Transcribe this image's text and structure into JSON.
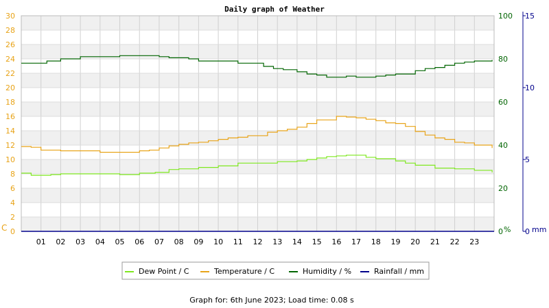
{
  "chart_data": {
    "type": "line",
    "title": "Daily graph of Weather",
    "footer": "Graph for: 6th June 2023; Load time: 0.08 s",
    "x_ticks": [
      "01",
      "02",
      "03",
      "04",
      "05",
      "06",
      "07",
      "08",
      "09",
      "10",
      "11",
      "12",
      "13",
      "14",
      "15",
      "16",
      "17",
      "18",
      "19",
      "20",
      "21",
      "22",
      "23"
    ],
    "x_range": [
      0,
      24
    ],
    "axes": {
      "left": {
        "unit": "C",
        "range": [
          0,
          30
        ],
        "ticks": [
          "0",
          "2",
          "4",
          "6",
          "8",
          "10",
          "12",
          "14",
          "16",
          "18",
          "20",
          "22",
          "24",
          "26",
          "28",
          "30"
        ],
        "color": "#e8a317"
      },
      "right1": {
        "unit": "%",
        "range": [
          0,
          100
        ],
        "ticks": [
          "0",
          "20",
          "40",
          "60",
          "80",
          "100"
        ],
        "color": "#006400"
      },
      "right2": {
        "unit": "mm",
        "range": [
          0,
          15
        ],
        "ticks": [
          "0",
          "5",
          "10",
          "15"
        ],
        "color": "#00008b"
      }
    },
    "grid": true,
    "legend_position": "bottom",
    "series": [
      {
        "name": "Dew Point / C",
        "axis": "left",
        "color": "#7ee81e",
        "x": [
          0,
          0.5,
          1,
          1.5,
          2,
          3,
          4,
          5,
          6,
          6.8,
          7.5,
          8,
          9,
          10,
          11,
          12,
          13,
          14,
          14.5,
          15,
          15.5,
          16,
          16.5,
          17,
          17.5,
          18,
          19,
          19.5,
          20,
          21,
          22,
          23,
          23.9
        ],
        "y": [
          8.1,
          7.8,
          7.8,
          7.9,
          8.0,
          8.0,
          8.0,
          7.9,
          8.1,
          8.2,
          8.6,
          8.7,
          8.9,
          9.1,
          9.5,
          9.5,
          9.7,
          9.8,
          10.0,
          10.2,
          10.4,
          10.5,
          10.6,
          10.6,
          10.3,
          10.1,
          9.8,
          9.5,
          9.2,
          8.8,
          8.7,
          8.5,
          8.2
        ]
      },
      {
        "name": "Temperature / C",
        "axis": "left",
        "color": "#e8a317",
        "x": [
          0,
          0.5,
          1,
          2,
          3,
          4,
          5,
          6,
          6.5,
          7,
          7.5,
          8,
          8.5,
          9,
          9.5,
          10,
          10.5,
          11,
          11.5,
          12,
          12.5,
          13,
          13.5,
          14,
          14.5,
          15,
          15.5,
          16,
          16.5,
          17,
          17.5,
          18,
          18.5,
          19,
          19.5,
          20,
          20.5,
          21,
          21.5,
          22,
          22.5,
          23,
          23.9
        ],
        "y": [
          11.8,
          11.7,
          11.3,
          11.2,
          11.2,
          11.0,
          11.0,
          11.2,
          11.3,
          11.6,
          11.9,
          12.1,
          12.3,
          12.4,
          12.6,
          12.8,
          13.0,
          13.1,
          13.3,
          13.3,
          13.8,
          14.0,
          14.2,
          14.5,
          15.0,
          15.5,
          15.5,
          16.0,
          15.9,
          15.8,
          15.6,
          15.4,
          15.1,
          15.0,
          14.6,
          13.9,
          13.4,
          13.0,
          12.8,
          12.4,
          12.3,
          12.0,
          11.6
        ]
      },
      {
        "name": "Humidity / %",
        "axis": "right1",
        "color": "#006400",
        "x": [
          0,
          0.3,
          1,
          1.3,
          2,
          3,
          4,
          5,
          6,
          7,
          7.5,
          8,
          8.5,
          9,
          10,
          11,
          11.5,
          12,
          12.3,
          12.8,
          13.3,
          14,
          14.5,
          15,
          15.5,
          16,
          16.5,
          17,
          17.5,
          18,
          18.5,
          19,
          19.5,
          20,
          20.5,
          21,
          21.5,
          22,
          22.5,
          23,
          23.9
        ],
        "y": [
          78,
          78,
          78,
          79,
          80,
          81,
          81,
          81.5,
          81.5,
          81,
          80.5,
          80.5,
          80,
          79,
          79,
          78,
          78,
          78,
          76.5,
          75.5,
          75,
          74,
          73,
          72.5,
          71.5,
          71.5,
          72,
          71.5,
          71.5,
          72,
          72.5,
          73,
          73,
          74.5,
          75.5,
          76,
          77,
          78,
          78.5,
          79,
          79.5
        ]
      },
      {
        "name": "Rainfall / mm",
        "axis": "right2",
        "color": "#00008b",
        "x": [
          0,
          24
        ],
        "y": [
          0,
          0
        ]
      }
    ]
  }
}
